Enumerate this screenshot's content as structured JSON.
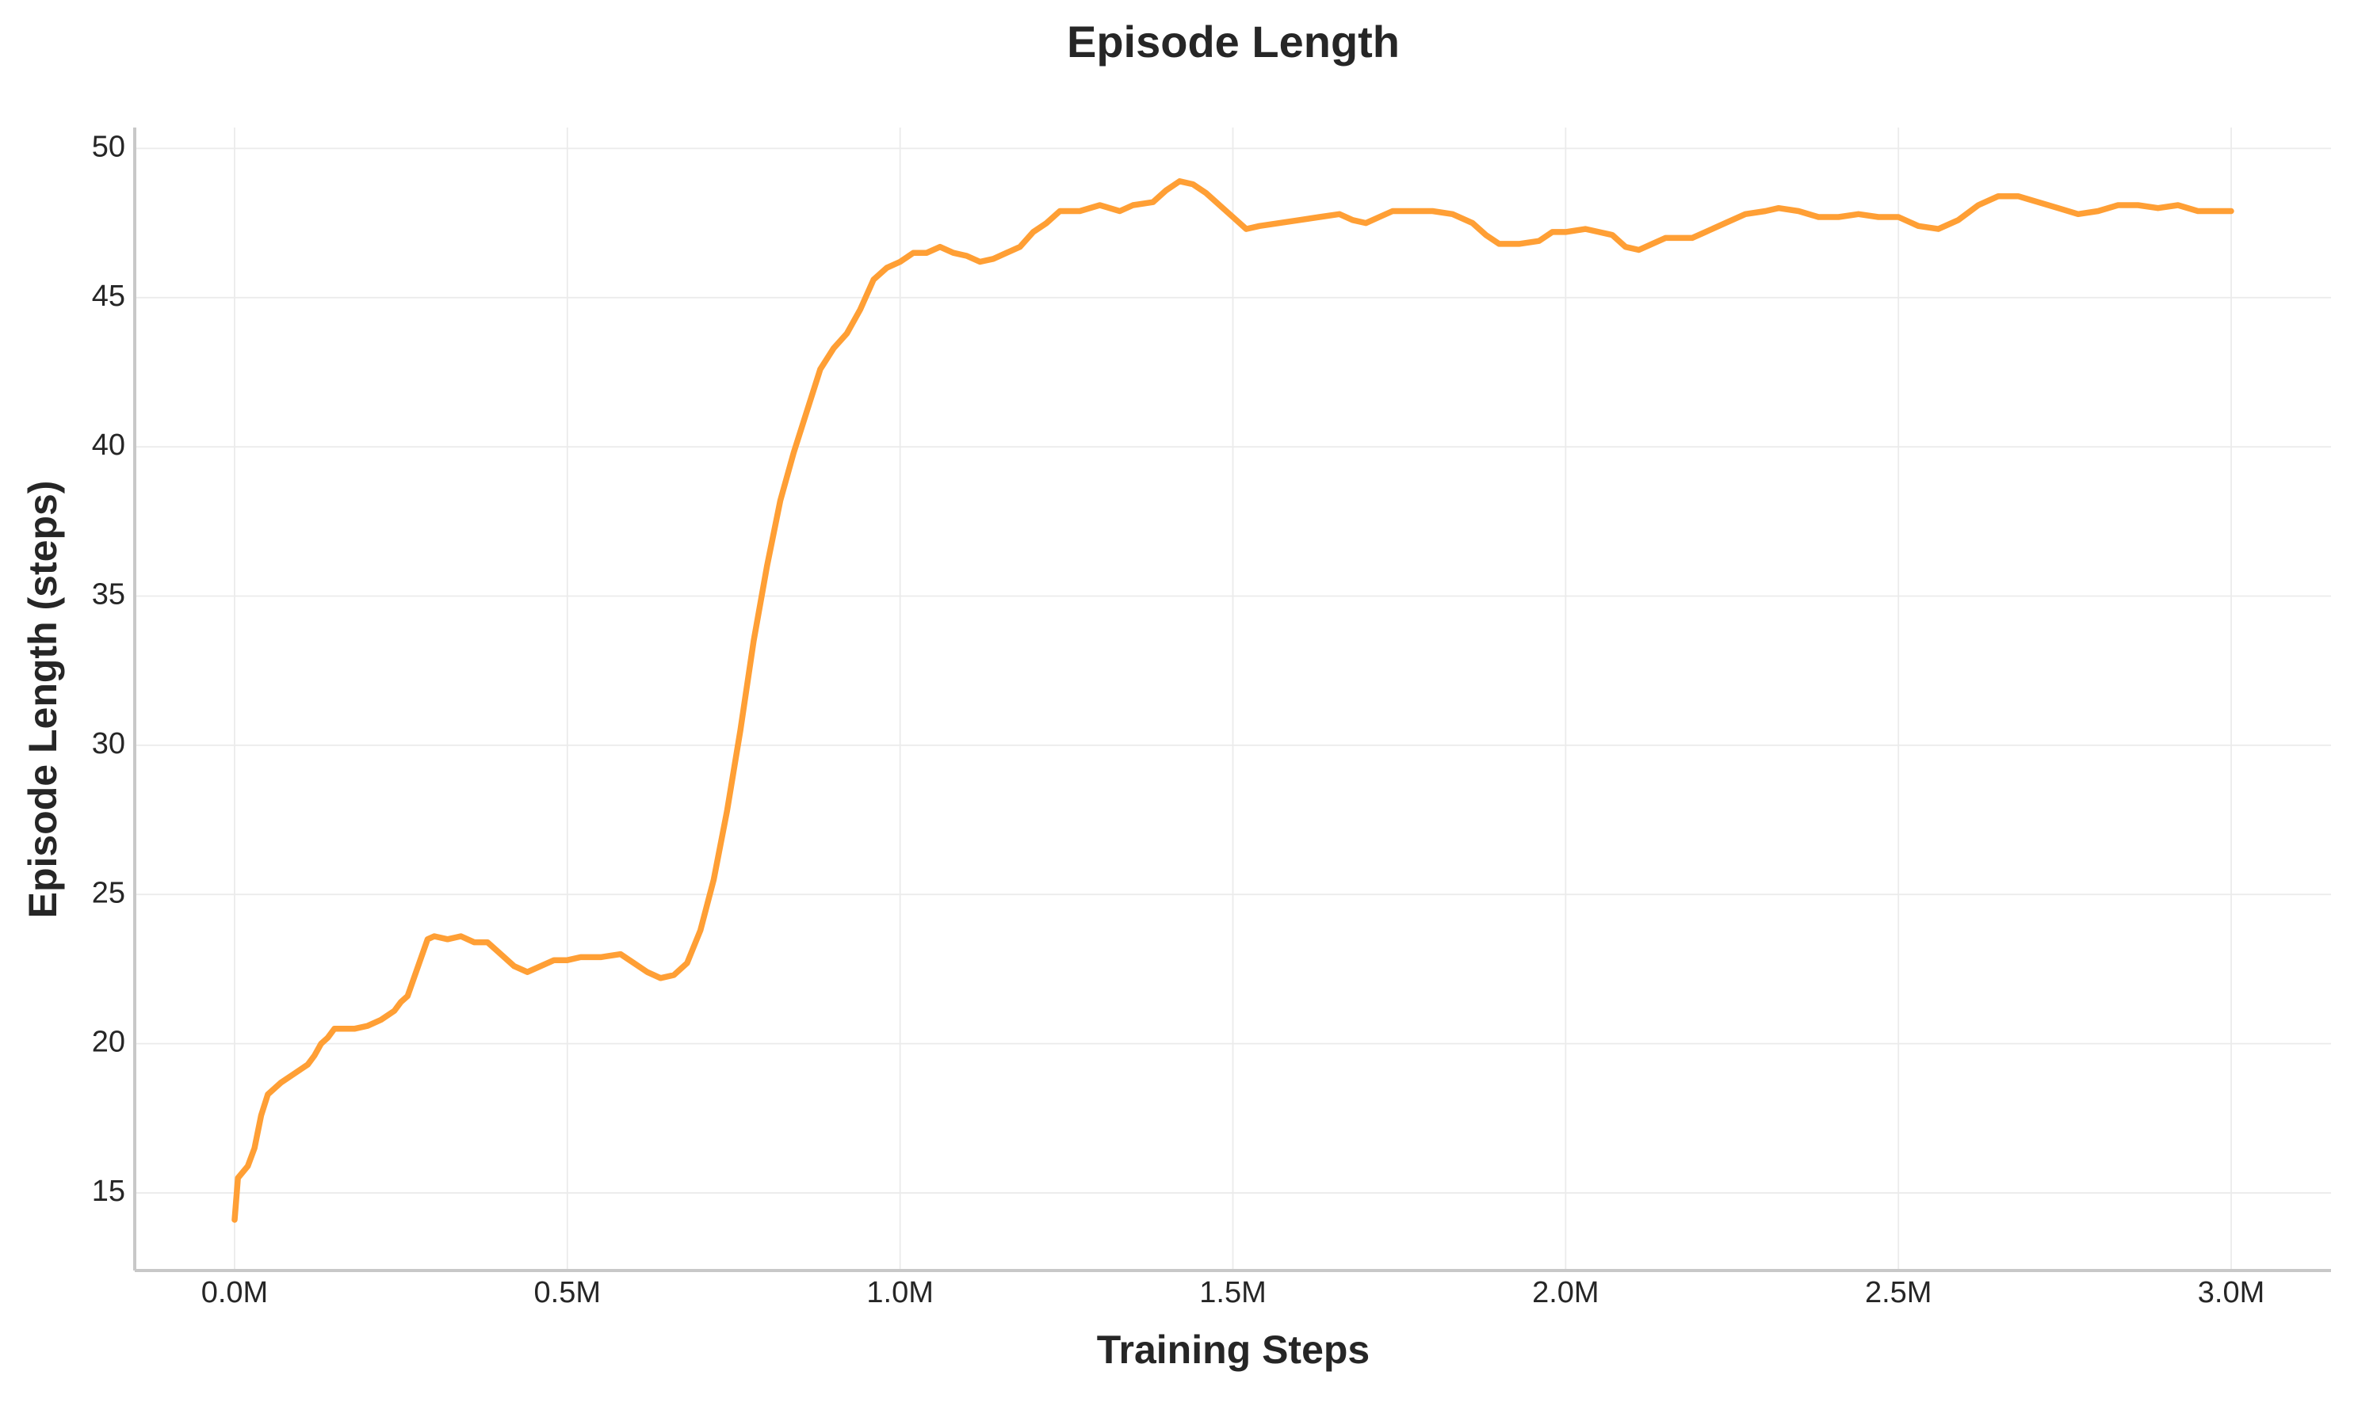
{
  "chart_data": {
    "type": "line",
    "title": "Episode Length",
    "x_label": "Training Steps",
    "y_label": "Episode Length (steps)",
    "x": [
      0,
      5000,
      20000,
      30000,
      40000,
      50000,
      70000,
      90000,
      110000,
      120000,
      130000,
      140000,
      150000,
      180000,
      200000,
      220000,
      240000,
      250000,
      260000,
      290000,
      300000,
      320000,
      340000,
      360000,
      380000,
      400000,
      420000,
      440000,
      460000,
      480000,
      500000,
      520000,
      550000,
      580000,
      600000,
      620000,
      640000,
      660000,
      680000,
      700000,
      720000,
      740000,
      760000,
      780000,
      800000,
      820000,
      840000,
      860000,
      880000,
      900000,
      920000,
      940000,
      960000,
      980000,
      1000000,
      1020000,
      1040000,
      1060000,
      1080000,
      1100000,
      1120000,
      1140000,
      1160000,
      1180000,
      1200000,
      1220000,
      1240000,
      1270000,
      1300000,
      1330000,
      1350000,
      1380000,
      1400000,
      1420000,
      1440000,
      1460000,
      1480000,
      1500000,
      1520000,
      1540000,
      1570000,
      1600000,
      1630000,
      1660000,
      1680000,
      1700000,
      1720000,
      1740000,
      1770000,
      1800000,
      1830000,
      1860000,
      1880000,
      1900000,
      1930000,
      1960000,
      1980000,
      2000000,
      2030000,
      2050000,
      2070000,
      2090000,
      2110000,
      2130000,
      2150000,
      2170000,
      2190000,
      2210000,
      2240000,
      2270000,
      2300000,
      2320000,
      2350000,
      2380000,
      2410000,
      2440000,
      2470000,
      2500000,
      2530000,
      2560000,
      2590000,
      2620000,
      2650000,
      2680000,
      2710000,
      2740000,
      2770000,
      2800000,
      2830000,
      2860000,
      2890000,
      2920000,
      2950000,
      3000000
    ],
    "series": [
      {
        "name": "Episode Length",
        "color": "#ff9f35",
        "values": [
          14.1,
          15.5,
          15.9,
          16.5,
          17.6,
          18.3,
          18.7,
          19.0,
          19.3,
          19.6,
          20.0,
          20.2,
          20.5,
          20.5,
          20.6,
          20.8,
          21.1,
          21.4,
          21.6,
          23.5,
          23.6,
          23.5,
          23.6,
          23.4,
          23.4,
          23.0,
          22.6,
          22.4,
          22.6,
          22.8,
          22.8,
          22.9,
          22.9,
          23.0,
          22.7,
          22.4,
          22.2,
          22.3,
          22.7,
          23.8,
          25.5,
          27.8,
          30.5,
          33.5,
          36.0,
          38.2,
          39.8,
          41.2,
          42.6,
          43.3,
          43.8,
          44.6,
          45.6,
          46.0,
          46.2,
          46.5,
          46.5,
          46.7,
          46.5,
          46.4,
          46.2,
          46.3,
          46.5,
          46.7,
          47.2,
          47.5,
          47.9,
          47.9,
          48.1,
          47.9,
          48.1,
          48.2,
          48.6,
          48.9,
          48.8,
          48.5,
          48.1,
          47.7,
          47.3,
          47.4,
          47.5,
          47.6,
          47.7,
          47.8,
          47.6,
          47.5,
          47.7,
          47.9,
          47.9,
          47.9,
          47.8,
          47.5,
          47.1,
          46.8,
          46.8,
          46.9,
          47.2,
          47.2,
          47.3,
          47.2,
          47.1,
          46.7,
          46.6,
          46.8,
          47.0,
          47.0,
          47.0,
          47.2,
          47.5,
          47.8,
          47.9,
          48.0,
          47.9,
          47.7,
          47.7,
          47.8,
          47.7,
          47.7,
          47.4,
          47.3,
          47.6,
          48.1,
          48.4,
          48.4,
          48.2,
          48.0,
          47.8,
          47.9,
          48.1,
          48.1,
          48.0,
          48.1,
          47.9,
          47.9
        ]
      }
    ],
    "xlim": [
      -150000,
      3150000
    ],
    "xticks": [
      {
        "value": 0,
        "label": "0.0M"
      },
      {
        "value": 500000,
        "label": "0.5M"
      },
      {
        "value": 1000000,
        "label": "1.0M"
      },
      {
        "value": 1500000,
        "label": "1.5M"
      },
      {
        "value": 2000000,
        "label": "2.0M"
      },
      {
        "value": 2500000,
        "label": "2.5M"
      },
      {
        "value": 3000000,
        "label": "3.0M"
      }
    ],
    "ylim": [
      12.4,
      50.7
    ],
    "yticks": [
      15,
      20,
      25,
      30,
      35,
      40,
      45,
      50
    ],
    "grid": true
  }
}
